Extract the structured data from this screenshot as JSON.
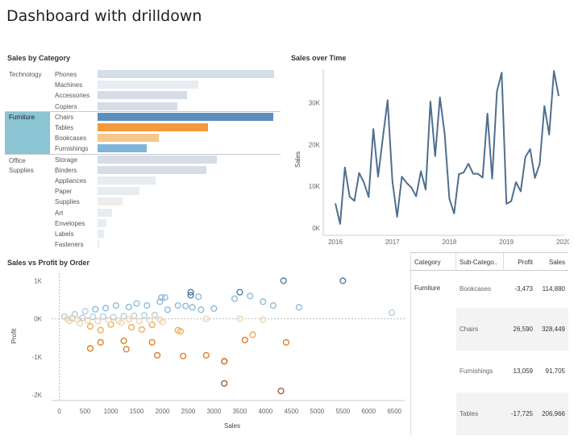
{
  "page": {
    "title": "Dashboard with drilldown"
  },
  "colors": {
    "bar_default": "#d5dde6",
    "bar_light": "#e7ecf0",
    "furniture_highlight": "#8bc4d3",
    "chairs": "#5c8fbd",
    "tables": "#f59a3c",
    "bookcases": "#f7c68b",
    "furnishings": "#7fb5da",
    "line": "#4e6f8f"
  },
  "bar_section": {
    "title": "Sales by Category",
    "groups": [
      {
        "category": "Technology",
        "items": [
          {
            "label": "Phones",
            "value": 330000,
            "color": "#d5dde6"
          },
          {
            "label": "Machines",
            "value": 189000,
            "color": "#e7ecf0"
          },
          {
            "label": "Accessories",
            "value": 167000,
            "color": "#d5dde6"
          },
          {
            "label": "Copiers",
            "value": 150000,
            "color": "#d5dde6"
          }
        ]
      },
      {
        "category": "Furniture",
        "items": [
          {
            "label": "Chairs",
            "value": 328449,
            "color": "#5c8fbd"
          },
          {
            "label": "Tables",
            "value": 206966,
            "color": "#f59a3c"
          },
          {
            "label": "Bookcases",
            "value": 114880,
            "color": "#f7c68b"
          },
          {
            "label": "Furnishings",
            "value": 91705,
            "color": "#7fb5da"
          }
        ]
      },
      {
        "category": "Office Supplies",
        "items": [
          {
            "label": "Storage",
            "value": 224000,
            "color": "#d5dde6"
          },
          {
            "label": "Binders",
            "value": 204000,
            "color": "#d5dde6"
          },
          {
            "label": "Appliances",
            "value": 108000,
            "color": "#e7ecf0"
          },
          {
            "label": "Paper",
            "value": 79000,
            "color": "#e7ecf0"
          },
          {
            "label": "Supplies",
            "value": 47000,
            "color": "#efecea"
          },
          {
            "label": "Art",
            "value": 27000,
            "color": "#e7ecf0"
          },
          {
            "label": "Envelopes",
            "value": 16000,
            "color": "#e7ecf0"
          },
          {
            "label": "Labels",
            "value": 12000,
            "color": "#e7ecf0"
          },
          {
            "label": "Fasteners",
            "value": 3000,
            "color": "#e7ecf0"
          }
        ]
      }
    ]
  },
  "line_section": {
    "title": "Sales over Time",
    "ylabel": "Sales",
    "x_ticks": [
      "2016",
      "2017",
      "2018",
      "2019",
      "2020"
    ],
    "y_ticks": [
      "0K",
      "10K",
      "20K",
      "30K"
    ]
  },
  "scatter_section": {
    "title": "Sales vs Profit by Order",
    "xlabel": "Sales",
    "ylabel": "Profit",
    "x_ticks": [
      "0",
      "500",
      "1000",
      "1500",
      "2000",
      "2500",
      "3000",
      "3500",
      "4000",
      "4500",
      "5000",
      "5500",
      "6000",
      "6500"
    ],
    "y_ticks": [
      "1K",
      "0K",
      "-1K",
      "-2K"
    ]
  },
  "table_section": {
    "headers": [
      "Category",
      "Sub-Catego..",
      "Profit",
      "Sales"
    ],
    "category": "Furniture",
    "rows": [
      {
        "sub": "Bookcases",
        "profit": "-3,473",
        "sales": "114,880"
      },
      {
        "sub": "Chairs",
        "profit": "26,590",
        "sales": "328,449"
      },
      {
        "sub": "Furnishings",
        "profit": "13,059",
        "sales": "91,705"
      },
      {
        "sub": "Tables",
        "profit": "-17,725",
        "sales": "206,966"
      }
    ]
  },
  "chart_data": [
    {
      "type": "bar",
      "title": "Sales by Category",
      "categories": [
        "Phones",
        "Machines",
        "Accessories",
        "Copiers",
        "Chairs",
        "Tables",
        "Bookcases",
        "Furnishings",
        "Storage",
        "Binders",
        "Appliances",
        "Paper",
        "Supplies",
        "Art",
        "Envelopes",
        "Labels",
        "Fasteners"
      ],
      "values": [
        330000,
        189000,
        167000,
        150000,
        328449,
        206966,
        114880,
        91705,
        224000,
        204000,
        108000,
        79000,
        47000,
        27000,
        16000,
        12000,
        3000
      ]
    },
    {
      "type": "line",
      "title": "Sales over Time",
      "xlabel": "",
      "ylabel": "Sales",
      "ylim": [
        0,
        38000
      ],
      "x": [
        "2016-01",
        "2016-02",
        "2016-03",
        "2016-04",
        "2016-05",
        "2016-06",
        "2016-07",
        "2016-08",
        "2016-09",
        "2016-10",
        "2016-11",
        "2016-12",
        "2017-01",
        "2017-02",
        "2017-03",
        "2017-04",
        "2017-05",
        "2017-06",
        "2017-07",
        "2017-08",
        "2017-09",
        "2017-10",
        "2017-11",
        "2017-12",
        "2018-01",
        "2018-02",
        "2018-03",
        "2018-04",
        "2018-05",
        "2018-06",
        "2018-07",
        "2018-08",
        "2018-09",
        "2018-10",
        "2018-11",
        "2018-12",
        "2019-01",
        "2019-02",
        "2019-03",
        "2019-04",
        "2019-05",
        "2019-06",
        "2019-07",
        "2019-08",
        "2019-09",
        "2019-10",
        "2019-11",
        "2019-12"
      ],
      "series": [
        {
          "values": [
            5900,
            1000,
            14500,
            7500,
            6500,
            13200,
            10900,
            7400,
            23700,
            12300,
            21600,
            30600,
            11300,
            2700,
            12300,
            10800,
            9700,
            7600,
            13600,
            9200,
            30300,
            17200,
            31300,
            22500,
            7000,
            3500,
            12900,
            13300,
            15400,
            13000,
            13000,
            12100,
            27400,
            11800,
            32700,
            37200,
            5800,
            6400,
            11000,
            8800,
            17000,
            18900,
            12000,
            15300,
            29200,
            22400,
            37600,
            31600
          ]
        }
      ]
    },
    {
      "type": "scatter",
      "title": "Sales vs Profit by Order",
      "xlabel": "Sales",
      "ylabel": "Profit",
      "xlim": [
        -150,
        6700
      ],
      "ylim": [
        -2150,
        1200
      ],
      "points": [
        [
          4350,
          1000
        ],
        [
          5500,
          1000
        ],
        [
          2550,
          700
        ],
        [
          2550,
          620
        ],
        [
          2700,
          580
        ],
        [
          3500,
          700
        ],
        [
          3700,
          600
        ],
        [
          3950,
          450
        ],
        [
          4150,
          350
        ],
        [
          4650,
          300
        ],
        [
          6450,
          160
        ],
        [
          2050,
          560
        ],
        [
          1950,
          450
        ],
        [
          1980,
          560
        ],
        [
          3000,
          270
        ],
        [
          3400,
          530
        ],
        [
          2300,
          350
        ],
        [
          2450,
          340
        ],
        [
          2580,
          300
        ],
        [
          2750,
          240
        ],
        [
          2100,
          240
        ],
        [
          1700,
          350
        ],
        [
          1500,
          400
        ],
        [
          1350,
          310
        ],
        [
          1100,
          350
        ],
        [
          900,
          280
        ],
        [
          700,
          250
        ],
        [
          500,
          200
        ],
        [
          300,
          120
        ],
        [
          100,
          60
        ],
        [
          200,
          -50
        ],
        [
          400,
          -120
        ],
        [
          600,
          -200
        ],
        [
          800,
          -300
        ],
        [
          1000,
          -150
        ],
        [
          1200,
          -100
        ],
        [
          1400,
          -220
        ],
        [
          1600,
          -280
        ],
        [
          1800,
          -160
        ],
        [
          2000,
          -80
        ],
        [
          2300,
          -300
        ],
        [
          2350,
          -330
        ],
        [
          2850,
          0
        ],
        [
          3500,
          0
        ],
        [
          3950,
          -20
        ],
        [
          600,
          -780
        ],
        [
          800,
          -620
        ],
        [
          1300,
          -800
        ],
        [
          1250,
          -580
        ],
        [
          1800,
          -620
        ],
        [
          1900,
          -960
        ],
        [
          2400,
          -980
        ],
        [
          2850,
          -960
        ],
        [
          3600,
          -560
        ],
        [
          3750,
          -420
        ],
        [
          4400,
          -620
        ],
        [
          3200,
          -1120
        ],
        [
          3200,
          -1700
        ],
        [
          4300,
          -1900
        ],
        [
          150,
          0
        ],
        [
          250,
          10
        ],
        [
          350,
          -20
        ],
        [
          450,
          30
        ],
        [
          550,
          -40
        ],
        [
          650,
          50
        ],
        [
          750,
          -60
        ],
        [
          850,
          60
        ],
        [
          950,
          -30
        ],
        [
          1050,
          40
        ],
        [
          1150,
          -50
        ],
        [
          1250,
          70
        ],
        [
          1350,
          -10
        ],
        [
          1450,
          80
        ],
        [
          1550,
          -60
        ],
        [
          1650,
          90
        ],
        [
          1750,
          -40
        ],
        [
          1850,
          100
        ],
        [
          1950,
          -20
        ]
      ]
    },
    {
      "type": "table",
      "headers": [
        "Category",
        "Sub-Catego..",
        "Profit",
        "Sales"
      ],
      "rows": [
        [
          "Furniture",
          "Bookcases",
          "-3,473",
          "114,880"
        ],
        [
          "Furniture",
          "Chairs",
          "26,590",
          "328,449"
        ],
        [
          "Furniture",
          "Furnishings",
          "13,059",
          "91,705"
        ],
        [
          "Furniture",
          "Tables",
          "-17,725",
          "206,966"
        ]
      ]
    }
  ]
}
